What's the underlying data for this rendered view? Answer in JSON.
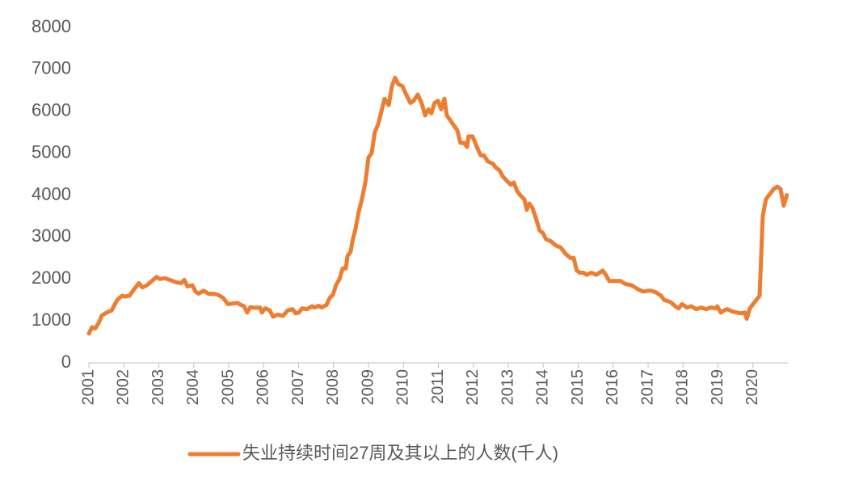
{
  "chart_data": {
    "type": "line",
    "x": [
      2001.0,
      2001.09,
      2001.18,
      2001.28,
      2001.37,
      2001.51,
      2001.65,
      2001.81,
      2001.95,
      2002.02,
      2002.16,
      2002.29,
      2002.43,
      2002.53,
      2002.66,
      2002.8,
      2002.94,
      2003.03,
      2003.17,
      2003.31,
      2003.5,
      2003.64,
      2003.73,
      2003.82,
      2003.96,
      2004.05,
      2004.14,
      2004.28,
      2004.42,
      2004.61,
      2004.7,
      2004.84,
      2004.98,
      2005.16,
      2005.25,
      2005.35,
      2005.44,
      2005.53,
      2005.62,
      2005.76,
      2005.9,
      2005.95,
      2006.04,
      2006.18,
      2006.27,
      2006.41,
      2006.55,
      2006.69,
      2006.83,
      2006.92,
      2007.01,
      2007.1,
      2007.24,
      2007.38,
      2007.47,
      2007.57,
      2007.66,
      2007.8,
      2007.89,
      2007.98,
      2008.07,
      2008.17,
      2008.26,
      2008.35,
      2008.4,
      2008.49,
      2008.54,
      2008.63,
      2008.72,
      2008.81,
      2008.91,
      2009.0,
      2009.09,
      2009.18,
      2009.28,
      2009.37,
      2009.46,
      2009.58,
      2009.67,
      2009.76,
      2009.85,
      2009.97,
      2010.08,
      2010.2,
      2010.29,
      2010.41,
      2010.52,
      2010.62,
      2010.71,
      2010.8,
      2010.89,
      2010.99,
      2011.08,
      2011.17,
      2011.24,
      2011.33,
      2011.45,
      2011.54,
      2011.63,
      2011.73,
      2011.82,
      2011.86,
      2011.98,
      2012.1,
      2012.21,
      2012.3,
      2012.42,
      2012.56,
      2012.65,
      2012.74,
      2012.84,
      2012.95,
      2013.07,
      2013.16,
      2013.25,
      2013.34,
      2013.46,
      2013.53,
      2013.6,
      2013.69,
      2013.81,
      2013.9,
      2013.99,
      2014.08,
      2014.22,
      2014.36,
      2014.5,
      2014.64,
      2014.78,
      2014.87,
      2014.96,
      2015.05,
      2015.15,
      2015.24,
      2015.38,
      2015.52,
      2015.61,
      2015.7,
      2015.79,
      2015.89,
      2016.03,
      2016.21,
      2016.35,
      2016.53,
      2016.72,
      2016.86,
      2017.0,
      2017.09,
      2017.23,
      2017.37,
      2017.46,
      2017.64,
      2017.78,
      2017.87,
      2017.97,
      2018.11,
      2018.24,
      2018.38,
      2018.52,
      2018.66,
      2018.8,
      2018.94,
      2018.98,
      2019.08,
      2019.17,
      2019.26,
      2019.4,
      2019.54,
      2019.68,
      2019.77,
      2019.82,
      2019.91,
      2020.05,
      2020.19,
      2020.28,
      2020.37,
      2020.46,
      2020.6,
      2020.69,
      2020.79,
      2020.88,
      2020.97
    ],
    "series": [
      {
        "name": "失业持续时间27周及其以上的人数(千人)",
        "color": "#ed7d31",
        "values": [
          700,
          850,
          820,
          950,
          1130,
          1200,
          1250,
          1500,
          1600,
          1580,
          1600,
          1750,
          1900,
          1800,
          1850,
          1950,
          2050,
          2000,
          2020,
          1980,
          1920,
          1900,
          1980,
          1820,
          1850,
          1700,
          1650,
          1720,
          1650,
          1640,
          1620,
          1550,
          1400,
          1420,
          1430,
          1380,
          1350,
          1200,
          1330,
          1310,
          1320,
          1200,
          1300,
          1250,
          1100,
          1150,
          1120,
          1250,
          1280,
          1180,
          1200,
          1300,
          1280,
          1350,
          1320,
          1360,
          1320,
          1380,
          1550,
          1620,
          1850,
          2000,
          2250,
          2250,
          2550,
          2650,
          2900,
          3200,
          3600,
          3900,
          4300,
          4900,
          5000,
          5500,
          5700,
          6000,
          6300,
          6150,
          6600,
          6800,
          6650,
          6600,
          6400,
          6200,
          6250,
          6400,
          6200,
          5900,
          6050,
          5950,
          6200,
          6250,
          6050,
          6300,
          5900,
          5800,
          5650,
          5550,
          5250,
          5250,
          5150,
          5400,
          5400,
          5150,
          4950,
          4950,
          4800,
          4750,
          4650,
          4600,
          4450,
          4350,
          4250,
          4300,
          4100,
          4000,
          3900,
          3650,
          3800,
          3700,
          3400,
          3150,
          3100,
          2950,
          2900,
          2800,
          2750,
          2600,
          2500,
          2500,
          2200,
          2150,
          2150,
          2100,
          2150,
          2100,
          2150,
          2200,
          2100,
          1950,
          1950,
          1950,
          1880,
          1850,
          1750,
          1700,
          1720,
          1720,
          1680,
          1600,
          1500,
          1450,
          1350,
          1300,
          1400,
          1320,
          1350,
          1280,
          1320,
          1280,
          1320,
          1300,
          1350,
          1200,
          1250,
          1280,
          1230,
          1200,
          1180,
          1200,
          1050,
          1300,
          1450,
          1600,
          3500,
          3900,
          4000,
          4150,
          4200,
          4150,
          3750,
          4000
        ]
      }
    ],
    "xlim": [
      2001,
      2021
    ],
    "xticks": [
      2001,
      2002,
      2003,
      2004,
      2005,
      2006,
      2007,
      2008,
      2009,
      2010,
      2011,
      2012,
      2013,
      2014,
      2015,
      2016,
      2017,
      2018,
      2019,
      2020
    ],
    "ylim": [
      0,
      8000
    ],
    "yticks": [
      0,
      1000,
      2000,
      3000,
      4000,
      5000,
      6000,
      7000,
      8000
    ],
    "grid": false,
    "legend": "bottom"
  }
}
